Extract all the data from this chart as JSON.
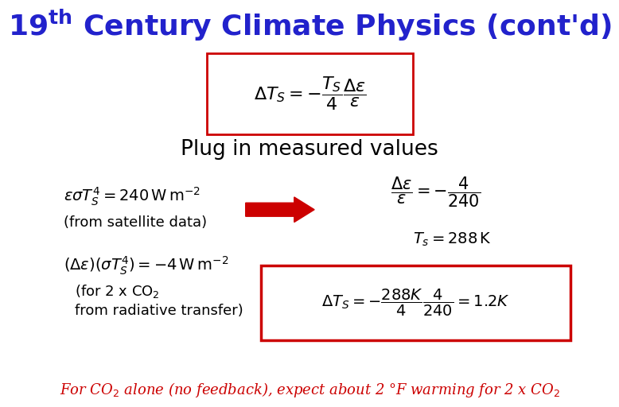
{
  "title_part1": "19",
  "title_sup": "th",
  "title_part2": " Century Climate Physics (cont’d)",
  "title_color": "#2222CC",
  "title_fontsize": 26,
  "bg_color": "#FFFFFF",
  "plug_text": "Plug in measured values",
  "plug_fontsize": 19,
  "bottom_text_color": "#CC0000",
  "bottom_text": "For CO$_2$ alone (no feedback), expect about 2 °F warming for 2 x CO$_2$",
  "arrow_color": "#CC0000",
  "box_color": "#CC0000",
  "eq_color": "#000000"
}
